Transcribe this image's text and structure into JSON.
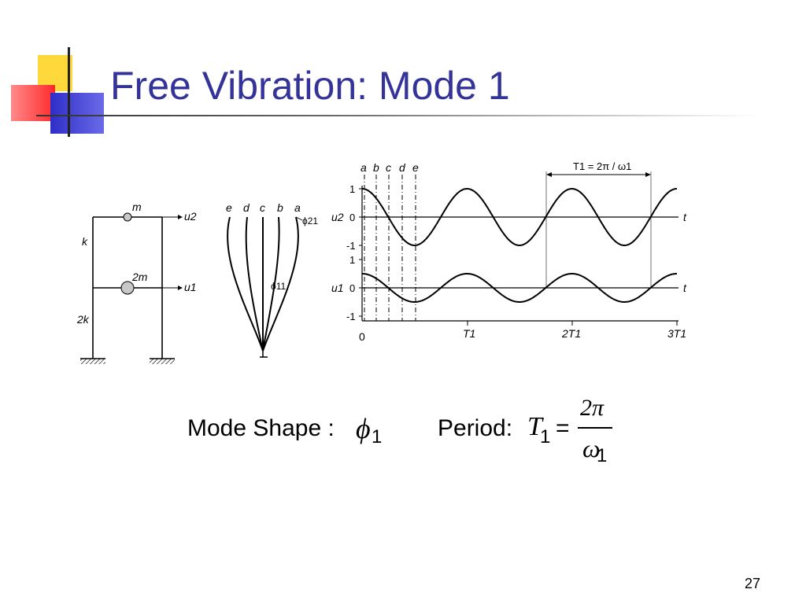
{
  "slide": {
    "title": "Free Vibration: Mode 1",
    "page_number": "27"
  },
  "frame": {
    "m_label": "m",
    "m2_label": "2m",
    "k_label": "k",
    "k2_label": "2k",
    "u2_label": "u2",
    "u1_label": "u1"
  },
  "mode_shape": {
    "letters": [
      "e",
      "d",
      "c",
      "b",
      "a"
    ],
    "phi21": "ϕ21",
    "phi11": "ϕ11"
  },
  "response": {
    "letters": [
      "a",
      "b",
      "c",
      "d",
      "e"
    ],
    "period_label": "T1 = 2π / ω1",
    "u2_axis": "u2",
    "u1_axis": "u1",
    "t_label": "t",
    "yticks_u2": [
      "1",
      "0",
      "-1"
    ],
    "yticks_u1": [
      "1",
      "0",
      "-1"
    ],
    "xticks": [
      "0",
      "T1",
      "2T1",
      "3T1"
    ]
  },
  "formulas": {
    "mode_shape_text": "Mode Shape :",
    "phi": "ϕ",
    "sub1": "1",
    "period_text": "Period:",
    "T": "T",
    "eq": "=",
    "numerator": "2π",
    "omega": "ω"
  },
  "colors": {
    "title": "#333399",
    "line": "#000000",
    "mass_fill": "#c8c8c8"
  }
}
